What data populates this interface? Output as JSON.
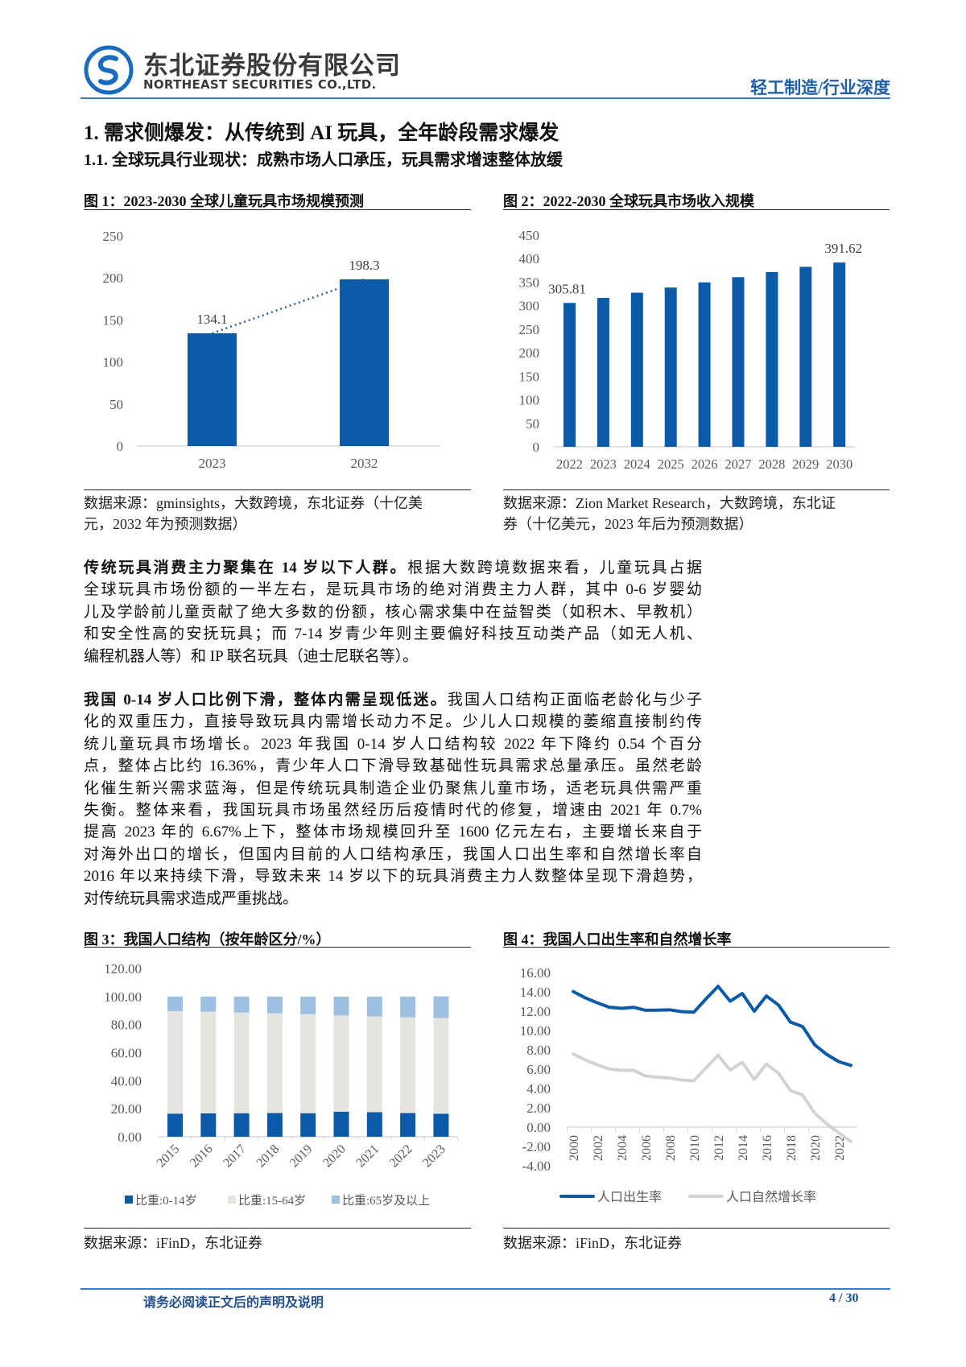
{
  "header": {
    "company_cn": "东北证券股份有限公司",
    "company_en": "NORTHEAST SECURITIES CO.,LTD.",
    "section_tag": "轻工制造/行业深度",
    "logo_icon": "northeast-securities-logo"
  },
  "headings": {
    "h1": "1.  需求侧爆发：从传统到 AI 玩具，全年龄段需求爆发",
    "h2": "1.1.  全球玩具行业现状：成熟市场人口承压，玩具需求增速整体放缓"
  },
  "figures": {
    "fig1": {
      "title": "图 1：2023-2030 全球儿童玩具市场规模预测",
      "source_lines": [
        "数据来源：gminsights，大数跨境，东北证券（十亿美",
        "元，2032 年为预测数据）"
      ]
    },
    "fig2": {
      "title": "图 2：2022-2030 全球玩具市场收入规模",
      "source_lines": [
        "数据来源：Zion Market Research，大数跨境，东北证",
        "券（十亿美元，2023 年后为预测数据）"
      ]
    },
    "fig3": {
      "title": "图 3：我国人口结构（按年龄区分/%）",
      "source_lines": [
        "数据来源：iFinD，东北证券"
      ]
    },
    "fig4": {
      "title": "图 4：我国人口出生率和自然增长率",
      "source_lines": [
        "数据来源：iFinD，东北证券"
      ]
    }
  },
  "paragraphs": [
    {
      "lead": "传统玩具消费主力聚集在 14 岁以下人群。",
      "lines": [
        "根据大数跨境数据来看，儿童玩具占据",
        "全球玩具市场份额的一半左右，是玩具市场的绝对消费主力人群，其中 0-6 岁婴幼",
        "儿及学龄前儿童贡献了绝大多数的份额，核心需求集中在益智类（如积木、早教机）",
        "和安全性高的安抚玩具；而 7-14 岁青少年则主要偏好科技互动类产品（如无人机、",
        "编程机器人等）和 IP 联名玩具（迪士尼联名等）。"
      ]
    },
    {
      "lead": "我国 0-14 岁人口比例下滑，整体内需呈现低迷。",
      "lines": [
        "我国人口结构正面临老龄化与少子",
        "化的双重压力，直接导致玩具内需增长动力不足。少儿人口规模的萎缩直接制约传",
        "统儿童玩具市场增长。2023 年我国 0-14 岁人口结构较 2022 年下降约 0.54 个百分",
        "点，整体占比约 16.36%，青少年人口下滑导致基础性玩具需求总量承压。虽然老龄",
        "化催生新兴需求蓝海，但是传统玩具制造企业仍聚焦儿童市场，适老玩具供需严重",
        "失衡。整体来看，我国玩具市场虽然经历后疫情时代的修复，增速由 2021 年 0.7%",
        "提高 2023 年的 6.67%上下，整体市场规模回升至 1600 亿元左右，主要增长来自于",
        "对海外出口的增长，但国内目前的人口结构承压，我国人口出生率和自然增长率自",
        "2016 年以来持续下滑，导致未来 14 岁以下的玩具消费主力人数整体呈现下滑趋势，",
        "对传统玩具需求造成严重挑战。"
      ]
    }
  ],
  "footer": {
    "disclaimer": "请务必阅读正文后的声明及说明",
    "page": "4 / 30"
  },
  "colors": {
    "brand_blue": "#0b5aa8",
    "header_blue": "#1f5fa6",
    "light_gray": "#e6e4df",
    "light_blue": "#9dbfe0",
    "gray_line": "#d3d3d3"
  },
  "chart_data": [
    {
      "id": "fig1",
      "type": "bar",
      "categories": [
        "2023",
        "2032"
      ],
      "values": [
        134.1,
        198.3
      ],
      "data_labels": [
        "134.1",
        "198.3"
      ],
      "ylim": [
        0,
        250
      ],
      "yticks": [
        "0",
        "50",
        "100",
        "150",
        "200",
        "250"
      ],
      "trendline": "dotted",
      "grid": false,
      "color": "#0b5aa8"
    },
    {
      "id": "fig2",
      "type": "bar",
      "categories": [
        "2022",
        "2023",
        "2024",
        "2025",
        "2026",
        "2027",
        "2028",
        "2029",
        "2030"
      ],
      "values": [
        305.81,
        316.5,
        327.5,
        338.5,
        349.5,
        360.5,
        371.5,
        382.5,
        391.62
      ],
      "data_labels": {
        "0": "305.81",
        "8": "391.62"
      },
      "ylim": [
        0,
        450
      ],
      "yticks": [
        "0",
        "50",
        "100",
        "150",
        "200",
        "250",
        "300",
        "350",
        "400",
        "450"
      ],
      "grid": false,
      "color": "#0b5aa8"
    },
    {
      "id": "fig3",
      "type": "bar",
      "stacked": true,
      "categories": [
        "2015",
        "2016",
        "2017",
        "2018",
        "2019",
        "2020",
        "2021",
        "2022",
        "2023"
      ],
      "series": [
        {
          "name": "比重:0-14岁",
          "values": [
            16.5,
            16.7,
            16.8,
            16.9,
            16.8,
            17.9,
            17.5,
            16.9,
            16.4
          ],
          "color": "#0b5aa8"
        },
        {
          "name": "比重:15-64岁",
          "values": [
            73.0,
            72.5,
            71.8,
            71.2,
            70.6,
            68.6,
            68.3,
            68.2,
            68.3
          ],
          "color": "#e6e4df"
        },
        {
          "name": "比重:65岁及以上",
          "values": [
            10.5,
            10.8,
            11.4,
            11.9,
            12.6,
            13.5,
            14.2,
            14.9,
            15.4
          ],
          "color": "#9dbfe0"
        }
      ],
      "ylim": [
        0,
        120
      ],
      "yticks": [
        "0.00",
        "20.00",
        "40.00",
        "60.00",
        "80.00",
        "100.00",
        "120.00"
      ],
      "legend": "bottom",
      "grid": false
    },
    {
      "id": "fig4",
      "type": "line",
      "x": [
        2000,
        2001,
        2002,
        2003,
        2004,
        2005,
        2006,
        2007,
        2008,
        2009,
        2010,
        2011,
        2012,
        2013,
        2014,
        2015,
        2016,
        2017,
        2018,
        2019,
        2020,
        2021,
        2022,
        2023
      ],
      "xticks": [
        "2000",
        "2002",
        "2004",
        "2006",
        "2008",
        "2010",
        "2012",
        "2014",
        "2016",
        "2018",
        "2020",
        "2022"
      ],
      "series": [
        {
          "name": "人口出生率",
          "color": "#0b5aa8",
          "values": [
            14.03,
            13.38,
            12.86,
            12.41,
            12.29,
            12.4,
            12.09,
            12.1,
            12.14,
            11.95,
            11.9,
            13.27,
            14.57,
            13.03,
            13.83,
            11.99,
            13.57,
            12.64,
            10.86,
            10.41,
            8.52,
            7.52,
            6.77,
            6.39
          ]
        },
        {
          "name": "人口自然增长率",
          "color": "#d3d3d3",
          "values": [
            7.58,
            6.95,
            6.45,
            6.01,
            5.87,
            5.89,
            5.28,
            5.17,
            5.08,
            4.87,
            4.79,
            6.13,
            7.43,
            5.9,
            6.71,
            4.93,
            6.53,
            5.58,
            3.78,
            3.32,
            1.45,
            0.34,
            -0.6,
            -1.48
          ]
        }
      ],
      "ylim": [
        -4,
        16
      ],
      "yticks": [
        "-4.00",
        "-2.00",
        "0.00",
        "2.00",
        "4.00",
        "6.00",
        "8.00",
        "10.00",
        "12.00",
        "14.00",
        "16.00"
      ],
      "legend": "bottom",
      "grid": false
    }
  ]
}
